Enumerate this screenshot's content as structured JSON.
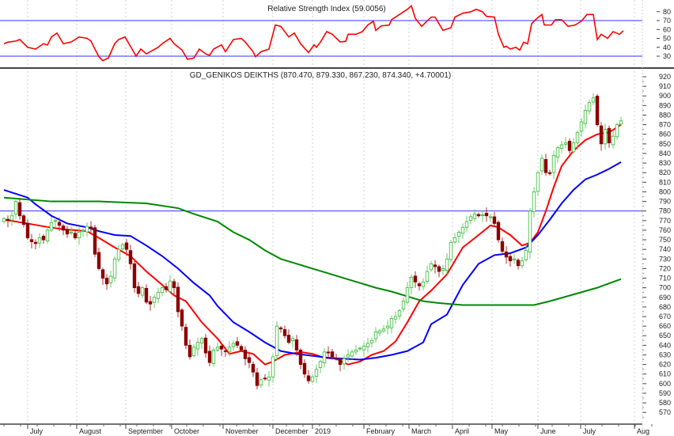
{
  "chart_data": [
    {
      "type": "line",
      "title": "Relative Strength Index (59.0056)",
      "ylim": [
        25,
        90
      ],
      "yticks": [
        30,
        40,
        50,
        60,
        70,
        80
      ],
      "levels": [
        70,
        30
      ],
      "series": [
        {
          "name": "RSI",
          "color": "#ff0000",
          "points": [
            [
              0,
              44
            ],
            [
              1,
              45.7
            ],
            [
              3,
              47
            ],
            [
              4,
              48.7
            ],
            [
              6,
              40
            ],
            [
              8,
              38
            ],
            [
              10,
              44
            ],
            [
              11,
              42.5
            ],
            [
              12,
              51.6
            ],
            [
              13.4,
              56
            ],
            [
              15,
              44
            ],
            [
              17,
              46
            ],
            [
              19,
              51.6
            ],
            [
              21,
              50
            ],
            [
              22,
              47
            ],
            [
              23,
              38
            ],
            [
              24,
              29.4
            ],
            [
              25,
              25
            ],
            [
              26.4,
              28
            ],
            [
              28,
              44
            ],
            [
              29,
              48.7
            ],
            [
              30.6,
              51.6
            ],
            [
              32,
              41
            ],
            [
              33.4,
              30
            ],
            [
              34.6,
              38
            ],
            [
              36,
              32.6
            ],
            [
              39,
              40
            ],
            [
              40,
              44
            ],
            [
              42,
              50
            ],
            [
              43,
              44
            ],
            [
              45,
              37
            ],
            [
              46.4,
              26.5
            ],
            [
              48,
              28
            ],
            [
              49.4,
              38
            ],
            [
              51,
              32.6
            ],
            [
              52,
              31
            ],
            [
              53,
              38
            ],
            [
              55,
              42.7
            ],
            [
              56,
              35
            ],
            [
              58,
              48.7
            ],
            [
              60,
              50
            ],
            [
              61,
              46
            ],
            [
              63,
              35
            ],
            [
              63.6,
              29.4
            ],
            [
              65,
              35
            ],
            [
              67,
              38
            ],
            [
              68.6,
              65
            ],
            [
              70,
              63.5
            ],
            [
              72,
              51.6
            ],
            [
              73.4,
              56
            ],
            [
              75,
              44
            ],
            [
              77,
              34
            ],
            [
              78.4,
              42.7
            ],
            [
              79,
              40
            ],
            [
              80,
              45.7
            ],
            [
              81.6,
              57.6
            ],
            [
              83,
              54.6
            ],
            [
              85,
              46
            ],
            [
              86.4,
              46.7
            ],
            [
              87,
              54.6
            ],
            [
              89,
              54.6
            ],
            [
              90.6,
              57.6
            ],
            [
              92,
              65
            ],
            [
              93.4,
              69.4
            ],
            [
              94,
              59
            ],
            [
              95.4,
              64
            ],
            [
              97.4,
              65
            ],
            [
              98,
              71
            ],
            [
              100,
              76.8
            ],
            [
              102,
              82.7
            ],
            [
              103,
              86.6
            ],
            [
              104,
              72.4
            ],
            [
              105.6,
              63.5
            ],
            [
              108,
              73.9
            ],
            [
              109,
              73.9
            ],
            [
              110,
              66.4
            ],
            [
              111,
              59
            ],
            [
              113,
              62
            ],
            [
              114,
              73.9
            ],
            [
              116,
              78.3
            ],
            [
              118,
              79.8
            ],
            [
              119.4,
              82.7
            ],
            [
              121,
              79.8
            ],
            [
              122,
              74.7
            ],
            [
              124,
              73.9
            ],
            [
              125,
              54.6
            ],
            [
              126.4,
              40
            ],
            [
              127,
              41.3
            ],
            [
              128,
              38
            ],
            [
              129.4,
              40
            ],
            [
              130.4,
              36.8
            ],
            [
              131.4,
              45.7
            ],
            [
              132.4,
              44
            ],
            [
              133.4,
              66.4
            ],
            [
              134.4,
              71
            ],
            [
              136,
              76.8
            ],
            [
              136.6,
              65
            ],
            [
              138.4,
              65
            ],
            [
              139.4,
              71
            ],
            [
              141,
              71
            ],
            [
              142.6,
              63.5
            ],
            [
              144.4,
              65
            ],
            [
              146,
              69.4
            ],
            [
              147.4,
              76.8
            ],
            [
              149,
              76.8
            ],
            [
              150,
              48.7
            ],
            [
              151,
              54.6
            ],
            [
              152.6,
              50
            ],
            [
              154,
              57.6
            ],
            [
              155.6,
              54.6
            ],
            [
              156.6,
              58.5
            ]
          ]
        }
      ]
    },
    {
      "type": "candlestick",
      "title": "GD_GENIKOS DEIKTHS (870.470, 879.330, 867.230, 874.340, +4.70001)",
      "ylim": [
        565,
        925
      ],
      "yticks": [
        570,
        580,
        590,
        600,
        610,
        620,
        630,
        640,
        650,
        660,
        670,
        680,
        690,
        700,
        710,
        720,
        730,
        740,
        750,
        760,
        770,
        780,
        790,
        800,
        810,
        820,
        830,
        840,
        850,
        860,
        870,
        880,
        890,
        900,
        910,
        920
      ],
      "horizontal_line": 780,
      "xlabels": [
        {
          "label": "July",
          "at": 6.6
        },
        {
          "label": "August",
          "at": 19
        },
        {
          "label": "September",
          "at": 31.4
        },
        {
          "label": "October",
          "at": 43
        },
        {
          "label": "November",
          "at": 56
        },
        {
          "label": "December",
          "at": 68.6
        },
        {
          "label": "2019",
          "at": 78.6
        },
        {
          "label": "February",
          "at": 91.6
        },
        {
          "label": "March",
          "at": 103
        },
        {
          "label": "April",
          "at": 114
        },
        {
          "label": "May",
          "at": 124
        },
        {
          "label": "June",
          "at": 135.6
        },
        {
          "label": "July",
          "at": 146.4
        },
        {
          "label": "Aug",
          "at": 160
        }
      ],
      "closes": [
        772,
        770,
        775,
        790,
        775,
        766,
        752,
        748,
        746,
        752,
        750,
        760,
        768,
        770,
        765,
        760,
        756,
        758,
        752,
        758,
        760,
        764,
        762,
        735,
        720,
        710,
        704,
        712,
        730,
        740,
        745,
        740,
        725,
        700,
        694,
        700,
        685,
        683,
        690,
        695,
        700,
        698,
        707,
        700,
        675,
        660,
        640,
        628,
        638,
        643,
        647,
        632,
        622,
        635,
        638,
        636,
        634,
        638,
        642,
        640,
        635,
        626,
        622,
        612,
        598,
        604,
        605,
        607,
        628,
        660,
        657,
        650,
        643,
        647,
        635,
        620,
        610,
        603,
        607,
        615,
        623,
        633,
        632,
        628,
        626,
        620,
        626,
        630,
        633,
        635,
        637,
        639,
        642,
        645,
        654,
        655,
        657,
        660,
        668,
        670,
        676,
        686,
        700,
        711,
        706,
        702,
        706,
        717,
        725,
        722,
        717,
        720,
        730,
        747,
        752,
        758,
        763,
        769,
        774,
        777,
        775,
        776,
        775,
        774,
        767,
        750,
        738,
        732,
        728,
        730,
        723,
        728,
        739,
        780,
        800,
        820,
        835,
        820,
        819,
        838,
        846,
        849,
        851,
        843,
        851,
        862,
        873,
        885,
        893,
        898,
        870,
        850,
        865,
        851,
        858,
        870,
        874
      ],
      "up_color": "#33b833",
      "down_color": "#8b0000",
      "moving_averages": [
        {
          "name": "MA short",
          "color": "#ff0000",
          "points": [
            [
              0,
              771
            ],
            [
              6,
              767
            ],
            [
              10,
              764
            ],
            [
              15,
              761
            ],
            [
              21,
              759
            ],
            [
              24,
              752
            ],
            [
              28,
              742
            ],
            [
              32,
              733
            ],
            [
              36,
              717
            ],
            [
              40,
              703
            ],
            [
              43,
              692
            ],
            [
              46,
              686
            ],
            [
              50,
              664
            ],
            [
              54,
              647
            ],
            [
              57,
              631
            ],
            [
              60,
              634
            ],
            [
              63,
              631
            ],
            [
              66,
              620
            ],
            [
              68,
              623
            ],
            [
              71,
              630
            ],
            [
              75,
              633
            ],
            [
              78,
              631
            ],
            [
              81,
              627
            ],
            [
              84,
              626
            ],
            [
              87,
              620
            ],
            [
              90,
              623
            ],
            [
              93,
              630
            ],
            [
              96,
              634
            ],
            [
              99,
              644
            ],
            [
              102,
              664
            ],
            [
              105,
              686
            ],
            [
              108,
              697
            ],
            [
              112,
              714
            ],
            [
              116,
              742
            ],
            [
              120,
              755
            ],
            [
              123,
              765
            ],
            [
              125,
              763
            ],
            [
              128,
              755
            ],
            [
              131,
              744
            ],
            [
              133,
              747
            ],
            [
              135,
              758
            ],
            [
              137,
              780
            ],
            [
              139,
              805
            ],
            [
              141,
              827
            ],
            [
              144,
              843
            ],
            [
              147,
              854
            ],
            [
              150,
              860
            ],
            [
              153,
              862
            ],
            [
              156,
              870
            ]
          ]
        },
        {
          "name": "MA medium",
          "color": "#0000ff",
          "points": [
            [
              0,
              802
            ],
            [
              6,
              794
            ],
            [
              8,
              787
            ],
            [
              12,
              775
            ],
            [
              16,
              767
            ],
            [
              21,
              763
            ],
            [
              24,
              759
            ],
            [
              28,
              755
            ],
            [
              32,
              754
            ],
            [
              36,
              744
            ],
            [
              40,
              733
            ],
            [
              44,
              720
            ],
            [
              48,
              705
            ],
            [
              52,
              692
            ],
            [
              54,
              681
            ],
            [
              58,
              664
            ],
            [
              62,
              654
            ],
            [
              66,
              643
            ],
            [
              70,
              634
            ],
            [
              74,
              631
            ],
            [
              78,
              629
            ],
            [
              82,
              627
            ],
            [
              86,
              626
            ],
            [
              90,
              625
            ],
            [
              94,
              627
            ],
            [
              98,
              630
            ],
            [
              102,
              634
            ],
            [
              106,
              643
            ],
            [
              108,
              662
            ],
            [
              112,
              672
            ],
            [
              116,
              703
            ],
            [
              120,
              725
            ],
            [
              124,
              734
            ],
            [
              128,
              736
            ],
            [
              132,
              742
            ],
            [
              135,
              755
            ],
            [
              138,
              771
            ],
            [
              141,
              788
            ],
            [
              144,
              802
            ],
            [
              147,
              813
            ],
            [
              150,
              818
            ],
            [
              153,
              824
            ],
            [
              156,
              831
            ]
          ]
        },
        {
          "name": "MA long",
          "color": "#008800",
          "points": [
            [
              0,
              794
            ],
            [
              12,
              790
            ],
            [
              24,
              790
            ],
            [
              36,
              788
            ],
            [
              44,
              783
            ],
            [
              48,
              777
            ],
            [
              54,
              769
            ],
            [
              58,
              758
            ],
            [
              62,
              750
            ],
            [
              66,
              739
            ],
            [
              70,
              730
            ],
            [
              74,
              725
            ],
            [
              78,
              720
            ],
            [
              82,
              715
            ],
            [
              86,
              710
            ],
            [
              90,
              705
            ],
            [
              94,
              700
            ],
            [
              98,
              696
            ],
            [
              102,
              691
            ],
            [
              106,
              686
            ],
            [
              110,
              684
            ],
            [
              116,
              682
            ],
            [
              124,
              682
            ],
            [
              130,
              682
            ],
            [
              134,
              682
            ],
            [
              138,
              686
            ],
            [
              144,
              693
            ],
            [
              150,
              700
            ],
            [
              156,
              709
            ]
          ]
        }
      ]
    }
  ]
}
